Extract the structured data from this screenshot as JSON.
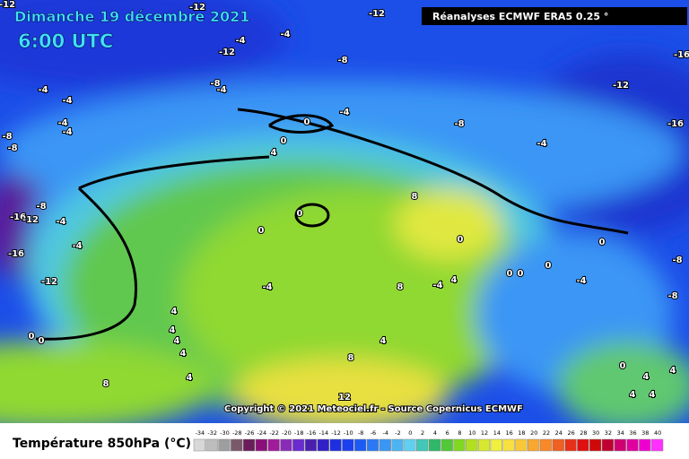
{
  "header": {
    "date": "Dimanche 19 décembre 2021",
    "time": "6:00 UTC",
    "source": "Réanalyses ECMWF ERA5 0.25 °"
  },
  "copyright": "Copyright © 2021 Meteociel.fr - Source Copernicus ECMWF",
  "legend": {
    "title": "Température 850hPa (°C)",
    "ticks": [
      -34,
      -32,
      -30,
      -28,
      -26,
      -24,
      -22,
      -20,
      -18,
      -16,
      -14,
      -12,
      -10,
      -8,
      -6,
      -4,
      -2,
      0,
      2,
      4,
      6,
      8,
      10,
      12,
      14,
      16,
      18,
      20,
      22,
      24,
      26,
      28,
      30,
      32,
      34,
      36,
      38,
      40
    ],
    "colors": [
      "#d8d8d8",
      "#bdbdbd",
      "#9e9e9e",
      "#7a5a6a",
      "#6b1c5a",
      "#8a0f7a",
      "#a01a9a",
      "#8a2bb8",
      "#6a2bd0",
      "#4a1fb0",
      "#3020c8",
      "#1e2fe0",
      "#1a40f0",
      "#1c5af5",
      "#2a78f5",
      "#3a96f5",
      "#4cb4f0",
      "#60d0f0",
      "#40c8b8",
      "#30b868",
      "#50c838",
      "#80d820",
      "#b0e020",
      "#d8e830",
      "#f0f040",
      "#f8e040",
      "#f8c838",
      "#f8a830",
      "#f88828",
      "#f06020",
      "#e83018",
      "#e01010",
      "#d00808",
      "#c00030",
      "#d00070",
      "#e000a0",
      "#f000d0",
      "#ff30ff"
    ]
  },
  "contour_labels": [
    -12,
    -12,
    -12,
    -4,
    -4,
    -12,
    -8,
    -8,
    -4,
    -12,
    -16,
    -4,
    -4,
    -4,
    -4,
    -8,
    -8,
    -4,
    -8,
    -16,
    -4,
    0,
    0,
    4,
    -8,
    -4,
    -16,
    -12,
    -4,
    -16,
    -12,
    0,
    0,
    8,
    0,
    -4,
    8,
    -4,
    4,
    0,
    0,
    0,
    0,
    -8,
    -4,
    -8,
    4,
    4,
    4,
    4,
    4,
    4,
    8,
    8,
    0,
    0,
    0,
    4,
    4,
    4,
    4,
    12
  ]
}
